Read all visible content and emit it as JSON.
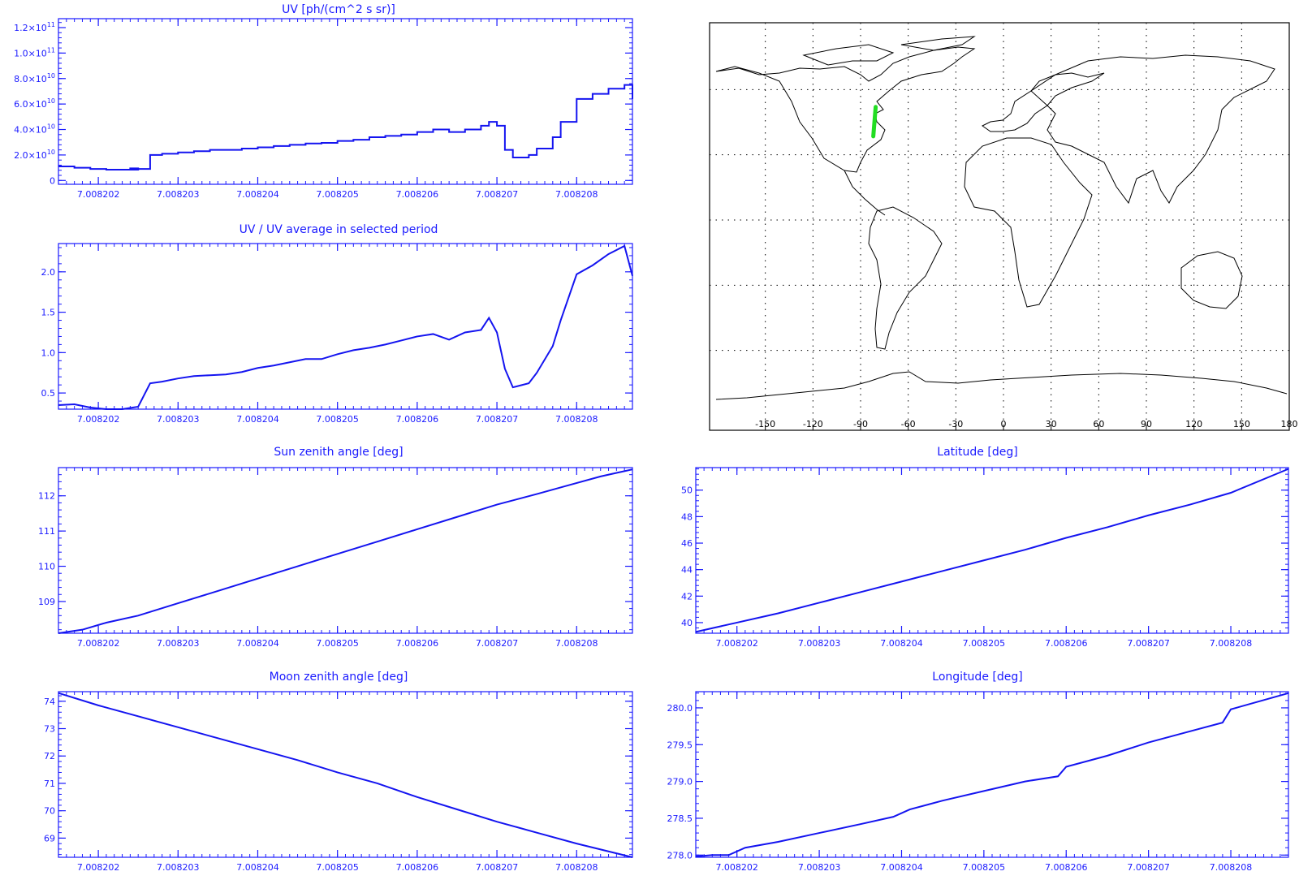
{
  "chart_data": [
    {
      "id": "uv",
      "type": "line",
      "step": true,
      "title": "UV [ph/(cm^2 s sr)]",
      "xlim": [
        7.0082015,
        7.0082087
      ],
      "x_ticks": [
        7.008202,
        7.008203,
        7.008204,
        7.008205,
        7.008206,
        7.008207,
        7.008208
      ],
      "x_tick_labels": [
        "7.008202",
        "7.008203",
        "7.008204",
        "7.008205",
        "7.008206",
        "7.008207",
        "7.008208"
      ],
      "ylim": [
        -3000000000.0,
        127000000000.0
      ],
      "y_ticks": [
        0,
        20000000000.0,
        40000000000.0,
        60000000000.0,
        80000000000.0,
        100000000000.0,
        120000000000.0
      ],
      "y_tick_labels": [
        {
          "mant": "0",
          "exp": ""
        },
        {
          "mant": "2.0×10",
          "exp": "10"
        },
        {
          "mant": "4.0×10",
          "exp": "10"
        },
        {
          "mant": "6.0×10",
          "exp": "10"
        },
        {
          "mant": "8.0×10",
          "exp": "10"
        },
        {
          "mant": "1.0×10",
          "exp": "11"
        },
        {
          "mant": "1.2×10",
          "exp": "11"
        }
      ],
      "x": [
        7.0082015,
        7.0082017,
        7.0082019,
        7.0082021,
        7.0082023,
        7.0082025,
        7.0082024,
        7.00820265,
        7.0082028,
        7.008203,
        7.0082032,
        7.0082034,
        7.0082036,
        7.0082038,
        7.008204,
        7.0082042,
        7.0082044,
        7.0082046,
        7.0082048,
        7.008205,
        7.0082052,
        7.0082054,
        7.0082056,
        7.0082058,
        7.008206,
        7.0082062,
        7.0082064,
        7.0082066,
        7.0082068,
        7.0082069,
        7.008207,
        7.0082071,
        7.0082072,
        7.0082074,
        7.0082075,
        7.0082077,
        7.0082078,
        7.008208,
        7.0082082,
        7.0082084,
        7.0082086,
        7.0082087
      ],
      "y": [
        11000000000.0,
        10000000000.0,
        9000000000.0,
        8500000000.0,
        8500000000.0,
        9500000000.0,
        9000000000.0,
        20000000000.0,
        21000000000.0,
        22000000000.0,
        23000000000.0,
        24000000000.0,
        24000000000.0,
        25000000000.0,
        26000000000.0,
        27000000000.0,
        28000000000.0,
        29000000000.0,
        29500000000.0,
        31000000000.0,
        32000000000.0,
        34000000000.0,
        35000000000.0,
        36000000000.0,
        38000000000.0,
        40000000000.0,
        38000000000.0,
        40000000000.0,
        43000000000.0,
        46000000000.0,
        43000000000.0,
        24000000000.0,
        18000000000.0,
        20000000000.0,
        25000000000.0,
        34000000000.0,
        46000000000.0,
        64000000000.0,
        68000000000.0,
        72000000000.0,
        75000000000.0,
        64000000000.0
      ]
    },
    {
      "id": "ratio",
      "type": "line",
      "title": "UV / UV average in selected period",
      "xlim": [
        7.0082015,
        7.0082087
      ],
      "x_ticks": [
        7.008202,
        7.008203,
        7.008204,
        7.008205,
        7.008206,
        7.008207,
        7.008208
      ],
      "x_tick_labels": [
        "7.008202",
        "7.008203",
        "7.008204",
        "7.008205",
        "7.008206",
        "7.008207",
        "7.008208"
      ],
      "ylim": [
        0.3,
        2.35
      ],
      "y_ticks": [
        0.5,
        1.0,
        1.5,
        2.0
      ],
      "y_tick_labels": [
        "0.5",
        "1.0",
        "1.5",
        "2.0"
      ],
      "x": [
        7.0082015,
        7.0082017,
        7.0082019,
        7.0082021,
        7.0082023,
        7.0082025,
        7.00820265,
        7.0082028,
        7.008203,
        7.0082032,
        7.0082034,
        7.0082036,
        7.0082038,
        7.008204,
        7.0082042,
        7.0082044,
        7.0082046,
        7.0082048,
        7.008205,
        7.0082052,
        7.0082054,
        7.0082056,
        7.0082058,
        7.008206,
        7.0082062,
        7.0082064,
        7.0082066,
        7.0082068,
        7.0082069,
        7.008207,
        7.0082071,
        7.0082072,
        7.0082074,
        7.0082075,
        7.0082077,
        7.0082078,
        7.008208,
        7.0082082,
        7.0082084,
        7.0082086,
        7.0082087
      ],
      "y": [
        0.35,
        0.36,
        0.32,
        0.3,
        0.3,
        0.33,
        0.62,
        0.64,
        0.68,
        0.71,
        0.72,
        0.73,
        0.76,
        0.81,
        0.84,
        0.88,
        0.92,
        0.92,
        0.98,
        1.03,
        1.06,
        1.1,
        1.15,
        1.2,
        1.23,
        1.16,
        1.25,
        1.28,
        1.43,
        1.25,
        0.8,
        0.57,
        0.62,
        0.75,
        1.08,
        1.4,
        1.97,
        2.08,
        2.22,
        2.32,
        1.95
      ]
    },
    {
      "id": "sza",
      "type": "line",
      "title": "Sun zenith angle [deg]",
      "xlim": [
        7.0082015,
        7.0082087
      ],
      "x_ticks": [
        7.008202,
        7.008203,
        7.008204,
        7.008205,
        7.008206,
        7.008207,
        7.008208
      ],
      "x_tick_labels": [
        "7.008202",
        "7.008203",
        "7.008204",
        "7.008205",
        "7.008206",
        "7.008207",
        "7.008208"
      ],
      "ylim": [
        108.1,
        112.8
      ],
      "y_ticks": [
        109,
        110,
        111,
        112
      ],
      "y_tick_labels": [
        "109",
        "110",
        "111",
        "112"
      ],
      "x": [
        7.0082015,
        7.0082018,
        7.0082021,
        7.0082025,
        7.008203,
        7.0082035,
        7.008204,
        7.0082045,
        7.008205,
        7.0082055,
        7.008206,
        7.0082065,
        7.008207,
        7.0082075,
        7.0082079,
        7.0082083,
        7.0082087
      ],
      "y": [
        108.1,
        108.2,
        108.4,
        108.6,
        108.95,
        109.3,
        109.65,
        110.0,
        110.35,
        110.7,
        111.05,
        111.4,
        111.75,
        112.05,
        112.3,
        112.55,
        112.75
      ]
    },
    {
      "id": "lat",
      "type": "line",
      "title": "Latitude [deg]",
      "xlim": [
        7.0082015,
        7.0082087
      ],
      "x_ticks": [
        7.008202,
        7.008203,
        7.008204,
        7.008205,
        7.008206,
        7.008207,
        7.008208
      ],
      "x_tick_labels": [
        "7.008202",
        "7.008203",
        "7.008204",
        "7.008205",
        "7.008206",
        "7.008207",
        "7.008208"
      ],
      "ylim": [
        39.2,
        51.7
      ],
      "y_ticks": [
        40,
        42,
        44,
        46,
        48,
        50
      ],
      "y_tick_labels": [
        "40",
        "42",
        "44",
        "46",
        "48",
        "50"
      ],
      "x": [
        7.0082015,
        7.008202,
        7.0082025,
        7.008203,
        7.0082035,
        7.008204,
        7.0082045,
        7.008205,
        7.0082055,
        7.008206,
        7.0082065,
        7.008207,
        7.0082075,
        7.008208,
        7.0082087
      ],
      "y": [
        39.3,
        40.0,
        40.7,
        41.5,
        42.3,
        43.1,
        43.9,
        44.7,
        45.5,
        46.4,
        47.2,
        48.1,
        48.9,
        49.8,
        51.6
      ]
    },
    {
      "id": "mza",
      "type": "line",
      "title": "Moon zenith angle [deg]",
      "xlim": [
        7.0082015,
        7.0082087
      ],
      "x_ticks": [
        7.008202,
        7.008203,
        7.008204,
        7.008205,
        7.008206,
        7.008207,
        7.008208
      ],
      "x_tick_labels": [
        "7.008202",
        "7.008203",
        "7.008204",
        "7.008205",
        "7.008206",
        "7.008207",
        "7.008208"
      ],
      "ylim": [
        68.3,
        74.35
      ],
      "y_ticks": [
        69,
        70,
        71,
        72,
        73,
        74
      ],
      "y_tick_labels": [
        "69",
        "70",
        "71",
        "72",
        "73",
        "74"
      ],
      "x": [
        7.0082015,
        7.008202,
        7.0082025,
        7.008203,
        7.0082035,
        7.008204,
        7.0082045,
        7.008205,
        7.0082055,
        7.008206,
        7.0082065,
        7.008207,
        7.0082075,
        7.008208,
        7.0082087
      ],
      "y": [
        74.3,
        73.85,
        73.45,
        73.05,
        72.65,
        72.25,
        71.85,
        71.4,
        71.0,
        70.5,
        70.05,
        69.6,
        69.2,
        68.8,
        68.3
      ]
    },
    {
      "id": "lon",
      "type": "line",
      "title": "Longitude [deg]",
      "xlim": [
        7.0082015,
        7.0082087
      ],
      "x_ticks": [
        7.008202,
        7.008203,
        7.008204,
        7.008205,
        7.008206,
        7.008207,
        7.008208
      ],
      "x_tick_labels": [
        "7.008202",
        "7.008203",
        "7.008204",
        "7.008205",
        "7.008206",
        "7.008207",
        "7.008208"
      ],
      "ylim": [
        277.97,
        280.22
      ],
      "y_ticks": [
        278.0,
        278.5,
        279.0,
        279.5,
        280.0
      ],
      "y_tick_labels": [
        "278.0",
        "278.5",
        "279.0",
        "279.5",
        "280.0"
      ],
      "x": [
        7.0082015,
        7.0082017,
        7.0082019,
        7.0082021,
        7.0082025,
        7.008203,
        7.0082035,
        7.0082039,
        7.0082041,
        7.0082045,
        7.008205,
        7.0082055,
        7.0082059,
        7.008206,
        7.0082065,
        7.008207,
        7.0082075,
        7.0082079,
        7.008208,
        7.0082087
      ],
      "y": [
        277.98,
        278.0,
        278.0,
        278.1,
        278.18,
        278.3,
        278.42,
        278.52,
        278.62,
        278.74,
        278.87,
        279.0,
        279.07,
        279.2,
        279.35,
        279.53,
        279.68,
        279.8,
        279.98,
        280.2
      ]
    }
  ],
  "map": {
    "lon_ticks": [
      -150,
      -120,
      -90,
      -60,
      -30,
      0,
      30,
      60,
      90,
      120,
      150,
      180
    ],
    "lon_tick_labels": [
      "-150",
      "-120",
      "-90",
      "-60",
      "-30",
      "0",
      "30",
      "60",
      "90",
      "120",
      "150",
      "180"
    ],
    "lat_grid": [
      60,
      30,
      0,
      -30,
      -60
    ],
    "track": {
      "lon": [
        [
          -80.5,
          52.0
        ],
        [
          -82.0,
          38.5
        ]
      ],
      "color": "#22dd22"
    }
  }
}
